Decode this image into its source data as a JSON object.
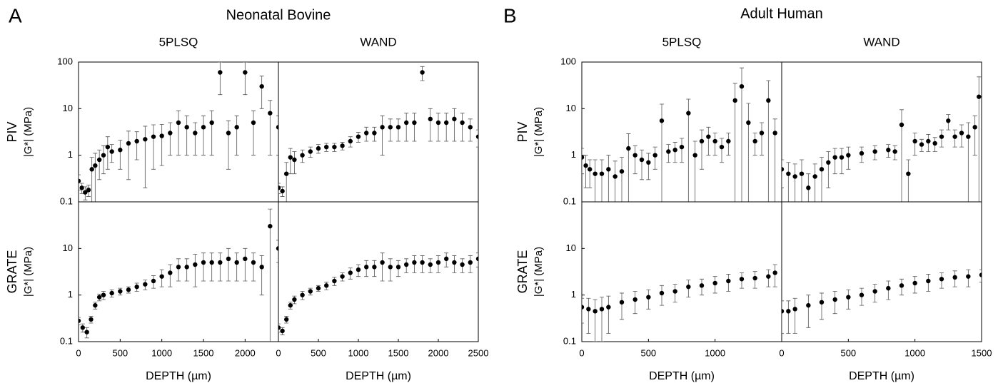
{
  "figure": {
    "groups": [
      {
        "label": "A",
        "title": "Neonatal Bovine"
      },
      {
        "label": "B",
        "title": "Adult Human"
      }
    ],
    "columns": [
      "5PLSQ",
      "WAND"
    ],
    "rows": [
      "PIV",
      "GRATE"
    ],
    "ylabel": "|G*| (MPa)",
    "xlabel": "DEPTH (µm)"
  },
  "chart_data": [
    {
      "type": "scatter",
      "log_y": true,
      "color": "#000000",
      "xlim": [
        0,
        2400
      ],
      "ylim": [
        0.1,
        100
      ],
      "yticks": [
        0.1,
        1,
        10,
        100
      ],
      "x": [
        0,
        40,
        80,
        120,
        160,
        200,
        250,
        300,
        350,
        400,
        500,
        600,
        700,
        800,
        900,
        1000,
        1100,
        1200,
        1300,
        1400,
        1500,
        1600,
        1700,
        1800,
        1900,
        2000,
        2100,
        2200,
        2300,
        2400
      ],
      "values": [
        0.28,
        0.2,
        0.16,
        0.18,
        0.5,
        0.6,
        0.8,
        1.0,
        1.5,
        1.2,
        1.3,
        1.8,
        2.0,
        2.2,
        2.5,
        2.6,
        3,
        5,
        4,
        3,
        4,
        5,
        60,
        3,
        4,
        60,
        5,
        30,
        8,
        4
      ],
      "errors": [
        0.1,
        0.05,
        0.05,
        0.05,
        0.4,
        0.5,
        0.5,
        0.6,
        1,
        0.5,
        0.8,
        1.5,
        1.2,
        2,
        2,
        2,
        2,
        4,
        3,
        2,
        3,
        4,
        40,
        2.5,
        3,
        40,
        4,
        20,
        7,
        3
      ]
    },
    {
      "type": "scatter",
      "log_y": true,
      "color": "#000000",
      "xlim": [
        0,
        2500
      ],
      "ylim": [
        0.1,
        100
      ],
      "x": [
        0,
        50,
        100,
        150,
        200,
        300,
        400,
        500,
        600,
        700,
        800,
        900,
        1000,
        1100,
        1200,
        1300,
        1400,
        1500,
        1600,
        1700,
        1800,
        1900,
        2000,
        2100,
        2200,
        2300,
        2400,
        2500
      ],
      "values": [
        0.2,
        0.17,
        0.4,
        0.9,
        0.8,
        1.0,
        1.2,
        1.4,
        1.5,
        1.5,
        1.6,
        2.0,
        2.5,
        3,
        3,
        4,
        4,
        4,
        5,
        5,
        60,
        6,
        5,
        5,
        6,
        5,
        4,
        2.5
      ],
      "errors": [
        0.05,
        0.04,
        0.3,
        0.5,
        0.4,
        0.3,
        0.3,
        0.3,
        0.3,
        0.3,
        0.3,
        0.5,
        0.6,
        1,
        1,
        3,
        2,
        2,
        3,
        3,
        20,
        4,
        3,
        3,
        4,
        3,
        2,
        1
      ]
    },
    {
      "type": "scatter",
      "log_y": true,
      "color": "#000000",
      "xlim": [
        0,
        2400
      ],
      "ylim": [
        0.1,
        100
      ],
      "yticks": [
        0.1,
        1,
        10
      ],
      "xticks": [
        0,
        500,
        1000,
        1500,
        2000
      ],
      "x": [
        0,
        50,
        100,
        150,
        200,
        250,
        300,
        400,
        500,
        600,
        700,
        800,
        900,
        1000,
        1100,
        1200,
        1300,
        1400,
        1500,
        1600,
        1700,
        1800,
        1900,
        2000,
        2100,
        2200,
        2300,
        2400
      ],
      "values": [
        0.28,
        0.2,
        0.16,
        0.3,
        0.6,
        0.9,
        1.0,
        1.1,
        1.2,
        1.3,
        1.5,
        1.7,
        2,
        2.5,
        3,
        4,
        4,
        4.5,
        5,
        5,
        5,
        6,
        5,
        6,
        5,
        4,
        30,
        10
      ],
      "errors": [
        0.05,
        0.04,
        0.04,
        0.05,
        0.1,
        0.15,
        0.2,
        0.2,
        0.2,
        0.2,
        0.3,
        0.4,
        0.6,
        1,
        1.5,
        2,
        2,
        3,
        3,
        3,
        3,
        4,
        3,
        4,
        3,
        3,
        40,
        5
      ]
    },
    {
      "type": "scatter",
      "log_y": true,
      "color": "#000000",
      "xlim": [
        0,
        2500
      ],
      "ylim": [
        0.1,
        100
      ],
      "xticks": [
        0,
        500,
        1000,
        1500,
        2000,
        2500
      ],
      "x": [
        0,
        50,
        100,
        150,
        200,
        300,
        400,
        500,
        600,
        700,
        800,
        900,
        1000,
        1100,
        1200,
        1300,
        1400,
        1500,
        1600,
        1700,
        1800,
        1900,
        2000,
        2100,
        2200,
        2300,
        2400,
        2500
      ],
      "values": [
        0.2,
        0.17,
        0.3,
        0.6,
        0.8,
        1,
        1.2,
        1.4,
        1.6,
        2,
        2.5,
        3,
        3.5,
        4,
        4,
        5,
        4,
        4,
        4.5,
        5,
        5,
        4.5,
        5,
        6,
        5,
        4.5,
        5,
        6
      ],
      "errors": [
        0.04,
        0.03,
        0.05,
        0.1,
        0.15,
        0.2,
        0.2,
        0.2,
        0.3,
        0.4,
        0.5,
        0.8,
        1,
        1.5,
        1.5,
        3,
        2,
        1.5,
        1.5,
        2,
        2,
        1.5,
        2,
        2,
        2,
        1.5,
        2,
        2
      ]
    },
    {
      "type": "scatter",
      "log_y": true,
      "color": "#000000",
      "xlim": [
        0,
        1500
      ],
      "ylim": [
        0.1,
        100
      ],
      "yticks": [
        0.1,
        1,
        10,
        100
      ],
      "x": [
        0,
        30,
        60,
        100,
        150,
        200,
        250,
        300,
        350,
        400,
        450,
        500,
        550,
        600,
        650,
        700,
        750,
        800,
        850,
        900,
        950,
        1000,
        1050,
        1100,
        1150,
        1200,
        1250,
        1300,
        1350,
        1400,
        1450
      ],
      "values": [
        0.9,
        0.6,
        0.5,
        0.4,
        0.4,
        0.5,
        0.35,
        0.45,
        1.4,
        1.0,
        0.8,
        0.7,
        1.0,
        5.5,
        1.2,
        1.3,
        1.5,
        8,
        1.0,
        2,
        2.5,
        2,
        1.5,
        2,
        15,
        30,
        5,
        2,
        3,
        15,
        3
      ],
      "errors": [
        0.5,
        0.4,
        0.3,
        0.4,
        0.4,
        0.5,
        0.4,
        0.45,
        1.5,
        0.6,
        0.5,
        0.4,
        0.5,
        7,
        0.5,
        0.6,
        0.8,
        8,
        1.0,
        1.5,
        1.5,
        1,
        0.8,
        1,
        20,
        45,
        8,
        1,
        2,
        25,
        3
      ]
    },
    {
      "type": "scatter",
      "log_y": true,
      "color": "#000000",
      "xlim": [
        0,
        1500
      ],
      "ylim": [
        0.1,
        100
      ],
      "x": [
        0,
        50,
        100,
        150,
        200,
        250,
        300,
        350,
        400,
        450,
        500,
        600,
        700,
        800,
        850,
        900,
        950,
        1000,
        1050,
        1100,
        1150,
        1200,
        1250,
        1300,
        1350,
        1400,
        1450,
        1480
      ],
      "values": [
        0.5,
        0.4,
        0.35,
        0.4,
        0.2,
        0.35,
        0.5,
        0.7,
        0.9,
        0.9,
        1,
        1.1,
        1.2,
        1.3,
        1.2,
        4.5,
        0.4,
        2,
        1.7,
        2,
        1.8,
        2.5,
        5.5,
        2.5,
        3,
        2.5,
        4,
        18
      ],
      "errors": [
        0.3,
        0.3,
        0.3,
        0.4,
        0.2,
        0.3,
        0.4,
        0.5,
        0.5,
        0.5,
        0.5,
        0.4,
        0.4,
        0.4,
        0.4,
        5,
        0.4,
        1,
        0.5,
        0.8,
        0.6,
        1,
        2,
        1,
        1.5,
        2.5,
        3,
        30
      ]
    },
    {
      "type": "scatter",
      "log_y": true,
      "color": "#000000",
      "xlim": [
        0,
        1500
      ],
      "ylim": [
        0.1,
        100
      ],
      "yticks": [
        0.1,
        1,
        10
      ],
      "xticks": [
        0,
        500,
        1000
      ],
      "x": [
        0,
        50,
        100,
        150,
        200,
        300,
        400,
        500,
        600,
        700,
        800,
        900,
        1000,
        1100,
        1200,
        1300,
        1400,
        1450
      ],
      "values": [
        0.55,
        0.5,
        0.45,
        0.5,
        0.55,
        0.7,
        0.8,
        0.9,
        1.1,
        1.2,
        1.5,
        1.6,
        1.8,
        2,
        2.2,
        2.3,
        2.5,
        3
      ],
      "errors": [
        0.3,
        0.35,
        0.35,
        0.4,
        0.4,
        0.4,
        0.4,
        0.4,
        0.5,
        0.5,
        0.6,
        0.6,
        0.7,
        0.8,
        0.8,
        0.9,
        1,
        1.5
      ]
    },
    {
      "type": "scatter",
      "log_y": true,
      "color": "#000000",
      "xlim": [
        0,
        1500
      ],
      "ylim": [
        0.1,
        100
      ],
      "xticks": [
        0,
        500,
        1000,
        1500
      ],
      "x": [
        0,
        50,
        100,
        200,
        300,
        400,
        500,
        600,
        700,
        800,
        900,
        1000,
        1100,
        1200,
        1300,
        1400,
        1500
      ],
      "values": [
        0.45,
        0.45,
        0.5,
        0.6,
        0.7,
        0.8,
        0.9,
        1.0,
        1.2,
        1.4,
        1.6,
        1.8,
        2,
        2.2,
        2.4,
        2.5,
        2.7
      ],
      "errors": [
        0.3,
        0.3,
        0.35,
        0.4,
        0.4,
        0.4,
        0.4,
        0.4,
        0.5,
        0.6,
        0.6,
        0.7,
        0.8,
        0.8,
        0.9,
        1,
        0.8
      ]
    }
  ]
}
